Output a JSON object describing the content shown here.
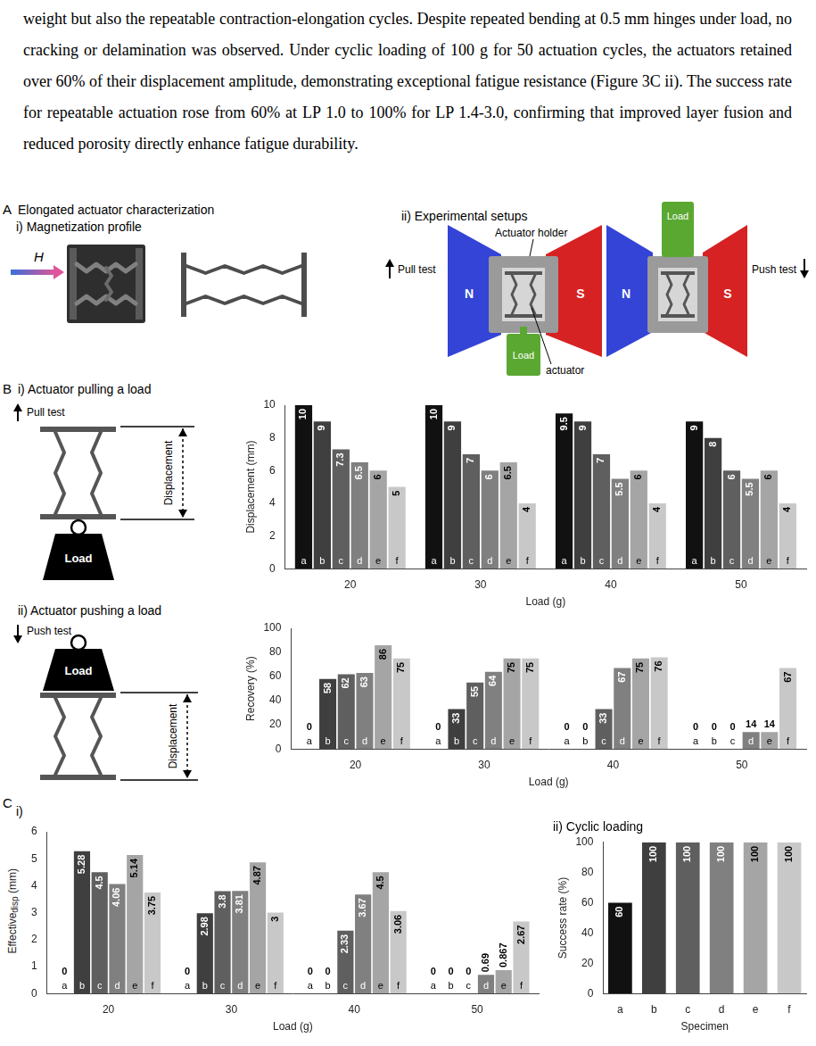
{
  "paragraph": "weight but also the repeatable contraction-elongation cycles. Despite repeated bending at 0.5 mm hinges under load, no cracking or delamination was observed. Under cyclic loading of 100 g for 50 actuation cycles, the actuators retained over 60% of their displacement amplitude, demonstrating exceptional fatigue resistance (Figure 3C ii). The success rate for repeatable actuation rose from 60% at LP 1.0 to 100% for LP 1.4-3.0, confirming that improved layer fusion and reduced porosity directly enhance fatigue durability.",
  "panel_a": {
    "letter": "A",
    "title": "Elongated actuator characterization",
    "sub_i": "i) Magnetization profile",
    "field": "H",
    "sub_ii": "ii) Experimental setups",
    "pull_test": "Pull test",
    "push_test": "Push test",
    "holder": "Actuator holder",
    "actuator": "actuator",
    "load": "Load",
    "north": "N",
    "south": "S"
  },
  "panel_b": {
    "letter": "B",
    "sub_i": "i) Actuator pulling a load",
    "sub_ii": "ii) Actuator pushing a load",
    "pull_test": "Pull test",
    "push_test": "Push test",
    "displacement": "Displacement",
    "load": "Load"
  },
  "panel_c": {
    "letter": "C",
    "sub_i": "i)"
  },
  "chart_data": [
    {
      "type": "bar",
      "categories": [
        "20",
        "30",
        "40",
        "50"
      ],
      "x_label": "Load (g)",
      "y_label": "Displacement (mm)",
      "ylim": [
        0,
        10
      ],
      "yticks": [
        0,
        2,
        4,
        6,
        8,
        10
      ],
      "grid": false,
      "data_labels": true,
      "series": [
        {
          "name": "a",
          "color": "#111111",
          "values": [
            10,
            10,
            9.5,
            9
          ]
        },
        {
          "name": "b",
          "color": "#3f3f3f",
          "values": [
            9,
            9,
            9,
            8
          ]
        },
        {
          "name": "c",
          "color": "#5f5f5f",
          "values": [
            7.3,
            7,
            7,
            6
          ]
        },
        {
          "name": "d",
          "color": "#808080",
          "values": [
            6.5,
            6,
            5.5,
            5.5
          ]
        },
        {
          "name": "e",
          "color": "#a5a5a5",
          "values": [
            6,
            6.5,
            6,
            6
          ]
        },
        {
          "name": "f",
          "color": "#c8c8c8",
          "values": [
            5,
            4,
            4,
            4
          ]
        }
      ]
    },
    {
      "type": "bar",
      "categories": [
        "20",
        "30",
        "40",
        "50"
      ],
      "x_label": "Load (g)",
      "y_label": "Recovery (%)",
      "ylim": [
        0,
        100
      ],
      "yticks": [
        0,
        20,
        40,
        60,
        80,
        100
      ],
      "grid": false,
      "data_labels": true,
      "series": [
        {
          "name": "a",
          "color": "#111111",
          "values": [
            0,
            0,
            0,
            0
          ]
        },
        {
          "name": "b",
          "color": "#3f3f3f",
          "values": [
            58,
            33,
            0,
            0
          ]
        },
        {
          "name": "c",
          "color": "#5f5f5f",
          "values": [
            62,
            55,
            33,
            0
          ]
        },
        {
          "name": "d",
          "color": "#808080",
          "values": [
            63,
            64,
            67,
            14
          ]
        },
        {
          "name": "e",
          "color": "#a5a5a5",
          "values": [
            86,
            75,
            75,
            14
          ]
        },
        {
          "name": "f",
          "color": "#c8c8c8",
          "values": [
            75,
            75,
            76,
            67
          ]
        }
      ]
    },
    {
      "type": "bar",
      "categories": [
        "20",
        "30",
        "40",
        "50"
      ],
      "x_label": "Load (g)",
      "y_label": {
        "text": "Effective",
        "subscript": "disp",
        "suffix": " (mm)"
      },
      "ylim": [
        0,
        6
      ],
      "yticks": [
        0,
        1,
        2,
        3,
        4,
        5,
        6
      ],
      "grid": false,
      "data_labels": true,
      "series": [
        {
          "name": "a",
          "color": "#111111",
          "values": [
            0,
            0,
            0,
            0
          ]
        },
        {
          "name": "b",
          "color": "#3f3f3f",
          "values": [
            5.28,
            2.98,
            0,
            0
          ]
        },
        {
          "name": "c",
          "color": "#5f5f5f",
          "values": [
            4.5,
            3.8,
            2.33,
            0
          ]
        },
        {
          "name": "d",
          "color": "#808080",
          "values": [
            4.06,
            3.81,
            3.67,
            0.69
          ]
        },
        {
          "name": "e",
          "color": "#a5a5a5",
          "values": [
            5.14,
            4.87,
            4.5,
            0.867
          ]
        },
        {
          "name": "f",
          "color": "#c8c8c8",
          "values": [
            3.75,
            3,
            3.06,
            2.67
          ]
        }
      ]
    },
    {
      "type": "bar",
      "title": "ii) Cyclic loading",
      "categories": [
        "a",
        "b",
        "c",
        "d",
        "e",
        "f"
      ],
      "values": [
        60,
        100,
        100,
        100,
        100,
        100
      ],
      "colors": [
        "#111111",
        "#3f3f3f",
        "#5f5f5f",
        "#808080",
        "#a5a5a5",
        "#c8c8c8"
      ],
      "x_label": "Specimen",
      "y_label": "Success rate (%)",
      "ylim": [
        0,
        100
      ],
      "yticks": [
        0,
        20,
        40,
        60,
        80,
        100
      ],
      "grid": false,
      "data_labels": true
    }
  ]
}
